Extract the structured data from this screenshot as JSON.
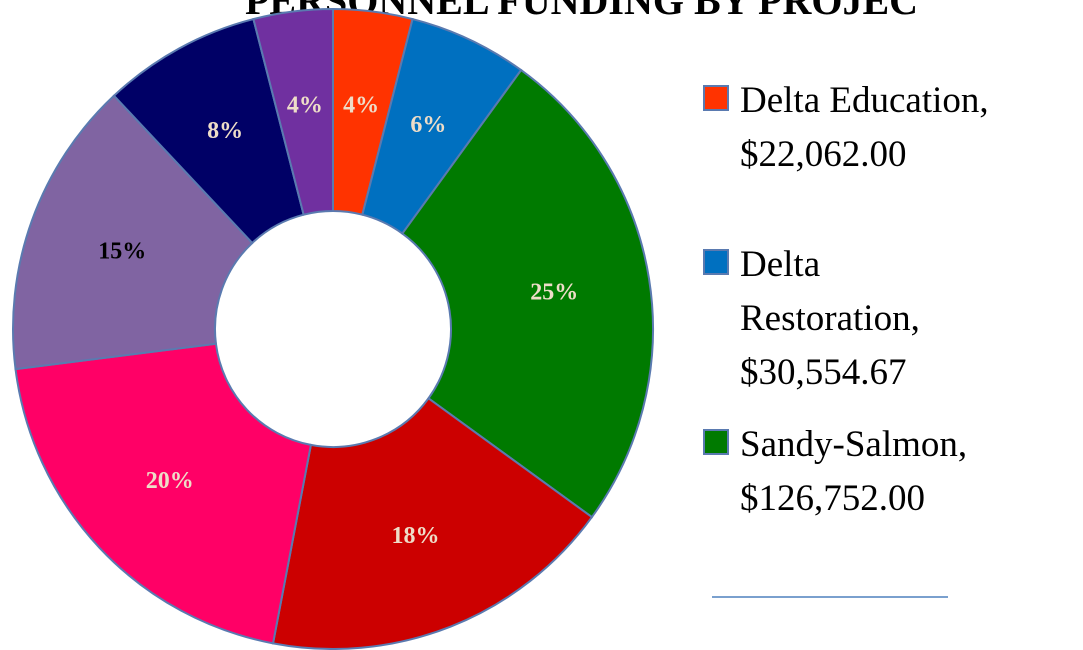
{
  "chart_data": {
    "type": "donut",
    "title": "PERSONNEL FUNDING BY PROJEC",
    "categories": [
      "Delta Education",
      "Delta Restoration",
      "Sandy-Salmon",
      null,
      null,
      null,
      null,
      null
    ],
    "values": [
      4,
      6,
      25,
      18,
      20,
      15,
      8,
      4
    ],
    "value_labels": [
      "4%",
      "6%",
      "25%",
      "18%",
      "20%",
      "15%",
      "8%",
      "4%"
    ],
    "colors": [
      "#ff3300",
      "#0070c0",
      "#007a00",
      "#cc0000",
      "#ff0066",
      "#8064a2",
      "#000066",
      "#7030a0"
    ],
    "label_colors": [
      "#eeddc8",
      "#eeddc8",
      "#eeddc8",
      "#eeddc8",
      "#eeddc8",
      "#000000",
      "#eeddc8",
      "#eeddc8"
    ],
    "legend": [
      {
        "lines": [
          "Delta Education,",
          "$22,062.00"
        ],
        "color": "#ff3300"
      },
      {
        "lines": [
          "Delta",
          "Restoration,",
          "$30,554.67"
        ],
        "color": "#0070c0"
      },
      {
        "lines": [
          "Sandy-Salmon,",
          "$126,752.00"
        ],
        "color": "#007a00"
      }
    ]
  }
}
